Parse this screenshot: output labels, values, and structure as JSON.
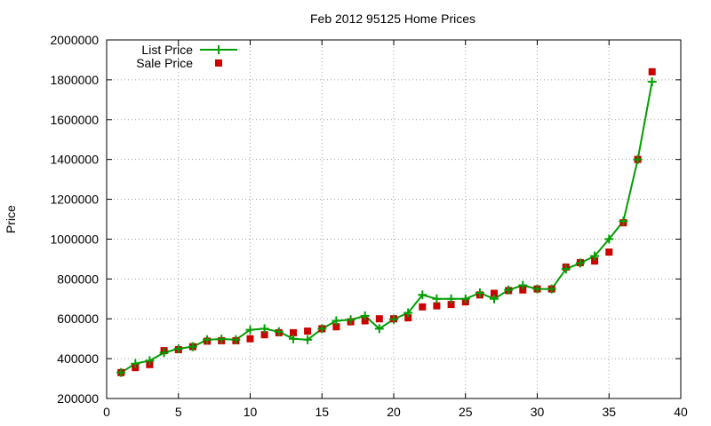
{
  "chart_data": {
    "type": "line",
    "title": "Feb 2012 95125 Home Prices",
    "xlabel": "",
    "ylabel": "Price",
    "xlim": [
      0,
      40
    ],
    "ylim": [
      200000,
      2000000
    ],
    "xticks": [
      "0",
      "5",
      "10",
      "15",
      "20",
      "25",
      "30",
      "35",
      "40"
    ],
    "yticks": [
      "200000",
      "400000",
      "600000",
      "800000",
      "1000000",
      "1200000",
      "1400000",
      "1600000",
      "1800000",
      "2000000"
    ],
    "grid": true,
    "legend_position": "top-left",
    "series": [
      {
        "name": "List Price",
        "style": "linespoints",
        "marker": "plus",
        "color": "#009e00",
        "x": [
          1,
          2,
          3,
          4,
          5,
          6,
          7,
          8,
          9,
          10,
          11,
          12,
          13,
          14,
          15,
          16,
          17,
          18,
          19,
          20,
          21,
          22,
          23,
          24,
          25,
          26,
          27,
          28,
          29,
          30,
          31,
          32,
          33,
          34,
          35,
          36,
          37,
          38
        ],
        "y": [
          330000,
          375000,
          390000,
          430000,
          450000,
          460000,
          495000,
          498000,
          495000,
          545000,
          550000,
          535000,
          500000,
          495000,
          550000,
          590000,
          595000,
          615000,
          550000,
          598000,
          630000,
          720000,
          700000,
          700000,
          700000,
          730000,
          700000,
          745000,
          768000,
          750000,
          750000,
          850000,
          880000,
          915000,
          1000000,
          1090000,
          1400000,
          1790000
        ]
      },
      {
        "name": "Sale Price",
        "style": "points",
        "marker": "square",
        "color": "#cc0000",
        "x": [
          1,
          2,
          3,
          4,
          5,
          6,
          7,
          8,
          9,
          10,
          11,
          12,
          13,
          14,
          15,
          16,
          17,
          18,
          19,
          20,
          21,
          22,
          23,
          24,
          25,
          26,
          27,
          28,
          29,
          30,
          31,
          32,
          33,
          34,
          35,
          36,
          37,
          38
        ],
        "y": [
          330000,
          355000,
          370000,
          440000,
          445000,
          460000,
          488000,
          490000,
          490000,
          500000,
          520000,
          530000,
          530000,
          538000,
          550000,
          560000,
          585000,
          590000,
          600000,
          600000,
          605000,
          660000,
          665000,
          672000,
          685000,
          720000,
          728000,
          742000,
          745000,
          750000,
          750000,
          860000,
          882000,
          890000,
          935000,
          1082000,
          1400000,
          1840000
        ]
      }
    ]
  }
}
